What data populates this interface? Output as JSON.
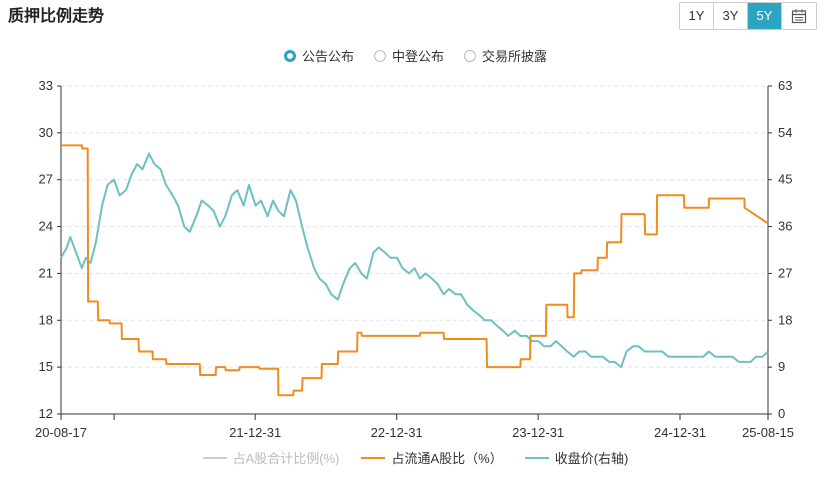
{
  "header": {
    "title": "质押比例走势"
  },
  "range_buttons": [
    {
      "label": "1Y",
      "active": false
    },
    {
      "label": "3Y",
      "active": false
    },
    {
      "label": "5Y",
      "active": true
    }
  ],
  "calendar_icon": "calendar-icon",
  "radios": [
    {
      "label": "公告公布",
      "active": true
    },
    {
      "label": "中登公布",
      "active": false
    },
    {
      "label": "交易所披露",
      "active": false
    }
  ],
  "colors": {
    "accent": "#2aa4bf",
    "orange": "#f08c1e",
    "teal": "#6cc0c4",
    "grey": "#cccccc"
  },
  "chart_data": {
    "type": "line",
    "x_ticks": [
      "20-08-17",
      "21-12-31",
      "22-12-31",
      "23-12-31",
      "24-12-31",
      "25-08-15"
    ],
    "x_tick_dates": [
      "2020-08-17",
      "2021-12-31",
      "2022-12-31",
      "2023-12-31",
      "2024-12-31",
      "2025-08-15"
    ],
    "xlim": [
      "2020-08-17",
      "2025-08-15"
    ],
    "y_left": {
      "ticks": [
        12,
        15,
        18,
        21,
        24,
        27,
        30,
        33
      ],
      "ylim": [
        12,
        33
      ]
    },
    "y_right": {
      "ticks": [
        0,
        9,
        18,
        27,
        36,
        45,
        54,
        63
      ],
      "ylim": [
        0,
        63
      ]
    },
    "grid": "horizontal-dashed",
    "legend_position": "bottom",
    "series": [
      {
        "name": "占A股合计比例(%)",
        "axis": "left",
        "style": "grey",
        "x": [],
        "y": []
      },
      {
        "name": "占流通A股比（%）",
        "axis": "left",
        "style": "orange",
        "x": [
          "2020-08-17",
          "2020-10-10",
          "2020-10-11",
          "2020-10-25",
          "2020-10-26",
          "2020-11-20",
          "2020-11-21",
          "2020-12-20",
          "2020-12-21",
          "2021-01-20",
          "2021-01-21",
          "2021-03-05",
          "2021-03-06",
          "2021-04-10",
          "2021-04-11",
          "2021-05-15",
          "2021-05-16",
          "2021-08-10",
          "2021-08-11",
          "2021-09-20",
          "2021-09-21",
          "2021-10-15",
          "2021-10-16",
          "2021-11-20",
          "2021-11-21",
          "2022-01-10",
          "2022-01-11",
          "2022-02-28",
          "2022-03-01",
          "2022-04-08",
          "2022-04-09",
          "2022-05-01",
          "2022-05-02",
          "2022-06-20",
          "2022-06-21",
          "2022-08-01",
          "2022-08-02",
          "2022-09-20",
          "2022-09-21",
          "2022-10-01",
          "2022-10-02",
          "2023-03-01",
          "2023-03-02",
          "2023-05-01",
          "2023-05-02",
          "2023-08-20",
          "2023-08-21",
          "2023-11-15",
          "2023-11-16",
          "2023-12-10",
          "2023-12-11",
          "2024-01-20",
          "2024-01-21",
          "2024-03-15",
          "2024-03-16",
          "2024-04-01",
          "2024-04-02",
          "2024-04-20",
          "2024-04-21",
          "2024-06-01",
          "2024-06-02",
          "2024-06-25",
          "2024-06-26",
          "2024-08-01",
          "2024-08-02",
          "2024-10-01",
          "2024-10-02",
          "2024-11-01",
          "2024-11-02",
          "2025-01-10",
          "2025-01-11",
          "2025-03-15",
          "2025-03-16",
          "2025-06-15",
          "2025-06-16",
          "2025-08-15"
        ],
        "y": [
          29.2,
          29.2,
          29.0,
          29.0,
          19.2,
          19.2,
          18.0,
          18.0,
          17.8,
          17.8,
          16.8,
          16.8,
          16.0,
          16.0,
          15.5,
          15.5,
          15.2,
          15.2,
          14.5,
          14.5,
          15.0,
          15.0,
          14.8,
          14.8,
          15.0,
          15.0,
          14.9,
          14.9,
          13.2,
          13.2,
          13.5,
          13.5,
          14.3,
          14.3,
          15.2,
          15.2,
          16.0,
          16.0,
          17.2,
          17.2,
          17.0,
          17.0,
          17.2,
          17.2,
          16.8,
          16.8,
          15.0,
          15.0,
          15.5,
          15.5,
          17.0,
          17.0,
          19.0,
          19.0,
          18.2,
          18.2,
          21.0,
          21.0,
          21.2,
          21.2,
          22.0,
          22.0,
          23.0,
          23.0,
          24.8,
          24.8,
          23.5,
          23.5,
          26.0,
          26.0,
          25.2,
          25.2,
          25.8,
          25.8,
          25.2,
          24.2
        ]
      },
      {
        "name": "收盘价(右轴)",
        "axis": "right",
        "style": "teal",
        "x": [
          "2020-08-17",
          "2020-09-01",
          "2020-09-10",
          "2020-09-25",
          "2020-10-10",
          "2020-10-20",
          "2020-11-01",
          "2020-11-15",
          "2020-12-01",
          "2020-12-15",
          "2021-01-01",
          "2021-01-15",
          "2021-02-01",
          "2021-02-15",
          "2021-03-01",
          "2021-03-15",
          "2021-04-01",
          "2021-04-15",
          "2021-05-01",
          "2021-05-15",
          "2021-06-01",
          "2021-06-15",
          "2021-07-01",
          "2021-07-15",
          "2021-08-01",
          "2021-08-15",
          "2021-09-01",
          "2021-09-15",
          "2021-10-01",
          "2021-10-15",
          "2021-11-01",
          "2021-11-15",
          "2021-12-01",
          "2021-12-15",
          "2022-01-01",
          "2022-01-15",
          "2022-02-01",
          "2022-02-15",
          "2022-03-01",
          "2022-03-15",
          "2022-04-01",
          "2022-04-15",
          "2022-05-01",
          "2022-05-15",
          "2022-06-01",
          "2022-06-15",
          "2022-07-01",
          "2022-07-15",
          "2022-08-01",
          "2022-08-15",
          "2022-09-01",
          "2022-09-15",
          "2022-10-01",
          "2022-10-15",
          "2022-11-01",
          "2022-11-15",
          "2022-12-01",
          "2022-12-15",
          "2023-01-01",
          "2023-01-15",
          "2023-02-01",
          "2023-02-15",
          "2023-03-01",
          "2023-03-15",
          "2023-04-01",
          "2023-04-15",
          "2023-05-01",
          "2023-05-15",
          "2023-06-01",
          "2023-06-15",
          "2023-07-01",
          "2023-07-15",
          "2023-08-01",
          "2023-08-15",
          "2023-09-01",
          "2023-09-15",
          "2023-10-01",
          "2023-10-15",
          "2023-11-01",
          "2023-11-15",
          "2023-12-01",
          "2023-12-15",
          "2024-01-01",
          "2024-01-15",
          "2024-02-01",
          "2024-02-15",
          "2024-03-01",
          "2024-03-15",
          "2024-04-01",
          "2024-04-15",
          "2024-05-01",
          "2024-05-15",
          "2024-06-01",
          "2024-06-15",
          "2024-07-01",
          "2024-07-15",
          "2024-08-01",
          "2024-08-15",
          "2024-09-01",
          "2024-09-15",
          "2024-10-01",
          "2024-10-15",
          "2024-11-01",
          "2024-11-15",
          "2024-12-01",
          "2024-12-15",
          "2025-01-01",
          "2025-01-15",
          "2025-02-01",
          "2025-02-15",
          "2025-03-01",
          "2025-03-15",
          "2025-04-01",
          "2025-04-15",
          "2025-05-01",
          "2025-05-15",
          "2025-06-01",
          "2025-06-15",
          "2025-07-01",
          "2025-07-15",
          "2025-08-01",
          "2025-08-15"
        ],
        "y": [
          30,
          32,
          34,
          31,
          28,
          30,
          29,
          33,
          40,
          44,
          45,
          42,
          43,
          46,
          48,
          47,
          50,
          48,
          47,
          44,
          42,
          40,
          36,
          35,
          38,
          41,
          40,
          39,
          36,
          38,
          42,
          43,
          40,
          44,
          40,
          41,
          38,
          41,
          39,
          38,
          43,
          41,
          36,
          32,
          28,
          26,
          25,
          23,
          22,
          25,
          28,
          29,
          27,
          26,
          31,
          32,
          31,
          30,
          30,
          28,
          27,
          28,
          26,
          27,
          26,
          25,
          23,
          24,
          23,
          23,
          21,
          20,
          19,
          18,
          18,
          17,
          16,
          15,
          16,
          15,
          15,
          14,
          14,
          13,
          13,
          14,
          13,
          12,
          11,
          12,
          12,
          11,
          11,
          11,
          10,
          10,
          9,
          12,
          13,
          13,
          12,
          12,
          12,
          12,
          11,
          11,
          11,
          11,
          11,
          11,
          11,
          12,
          11,
          11,
          11,
          11,
          10,
          10,
          10,
          11,
          11,
          12
        ]
      }
    ]
  }
}
